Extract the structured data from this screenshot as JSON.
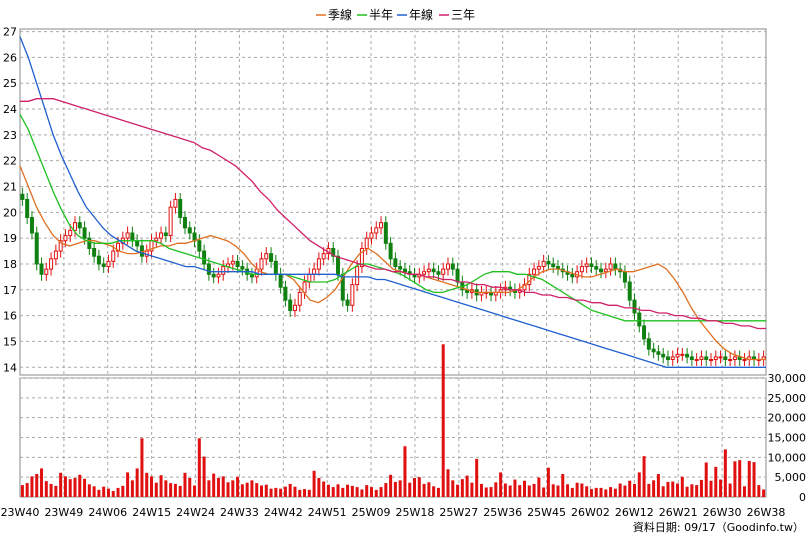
{
  "legend": [
    {
      "label": "季線",
      "color": "#e07020"
    },
    {
      "label": "半年",
      "color": "#20c020"
    },
    {
      "label": "年線",
      "color": "#2060d0"
    },
    {
      "label": "三年",
      "color": "#d0206a"
    }
  ],
  "source_label": "資料日期: 09/17（Goodinfo.tw）",
  "chart_data": {
    "type": "candlestick",
    "x_tick_labels": [
      "23W40",
      "23W49",
      "24W06",
      "24W15",
      "24W24",
      "24W33",
      "24W42",
      "24W51",
      "25W09",
      "25W18",
      "25W27",
      "25W36",
      "25W45",
      "26W02",
      "26W12",
      "26W21",
      "26W30",
      "26W38"
    ],
    "price_axis": {
      "range": [
        13.7,
        27.1
      ],
      "ticks": [
        14,
        15,
        16,
        17,
        18,
        19,
        20,
        21,
        22,
        23,
        24,
        25,
        26,
        27
      ],
      "grid": true
    },
    "volume_axis": {
      "range": [
        0,
        30000
      ],
      "ticks": [
        "0",
        "5,000",
        "10,000",
        "15,000",
        "20,000",
        "25,000",
        "30,000"
      ],
      "grid": true
    },
    "n_weeks": 156,
    "close": [
      20.5,
      19.8,
      19.2,
      18.0,
      17.6,
      17.8,
      18.2,
      18.5,
      18.9,
      19.1,
      19.3,
      19.6,
      19.4,
      19.0,
      18.6,
      18.3,
      18.0,
      17.9,
      18.1,
      18.5,
      18.8,
      19.0,
      19.2,
      18.9,
      18.7,
      18.3,
      18.5,
      18.9,
      19.0,
      19.2,
      19.1,
      20.2,
      20.5,
      19.8,
      19.4,
      19.2,
      18.9,
      18.5,
      18.0,
      17.6,
      17.5,
      17.6,
      17.9,
      18.0,
      18.1,
      17.9,
      17.8,
      17.6,
      17.5,
      17.8,
      18.2,
      18.4,
      18.1,
      17.6,
      17.1,
      16.6,
      16.2,
      16.4,
      16.9,
      17.3,
      17.6,
      17.8,
      18.2,
      18.4,
      18.6,
      18.3,
      17.6,
      16.6,
      16.4,
      17.2,
      17.9,
      18.6,
      19.0,
      19.2,
      19.4,
      19.6,
      18.8,
      18.2,
      17.9,
      17.8,
      17.7,
      17.6,
      17.5,
      17.6,
      17.7,
      17.8,
      17.7,
      17.6,
      17.8,
      18.0,
      17.8,
      17.3,
      17.0,
      16.9,
      17.0,
      16.8,
      16.9,
      16.9,
      16.8,
      16.9,
      17.0,
      17.1,
      17.0,
      16.9,
      17.0,
      17.2,
      17.6,
      17.8,
      17.9,
      18.1,
      18.0,
      17.9,
      17.8,
      17.7,
      17.6,
      17.5,
      17.7,
      17.9,
      18.0,
      17.9,
      17.8,
      17.7,
      17.8,
      18.0,
      17.8,
      17.7,
      17.3,
      16.6,
      16.1,
      15.6,
      15.1,
      14.7,
      14.6,
      14.5,
      14.4,
      14.3,
      14.4,
      14.5,
      14.5,
      14.4,
      14.3,
      14.3,
      14.4,
      14.3,
      14.3,
      14.4,
      14.4,
      14.3,
      14.3,
      14.4,
      14.3,
      14.3,
      14.4,
      14.3,
      14.3,
      14.4
    ],
    "volume": [
      3000,
      3500,
      5200,
      5800,
      7200,
      4000,
      3300,
      2800,
      6100,
      5200,
      4500,
      4800,
      5600,
      4600,
      3200,
      2700,
      1800,
      2600,
      2100,
      1500,
      2300,
      2800,
      6200,
      4200,
      7200,
      14800,
      6100,
      5200,
      3600,
      5500,
      4200,
      3500,
      3300,
      2800,
      6100,
      4800,
      2900,
      14800,
      10200,
      4200,
      5900,
      4800,
      5200,
      3700,
      4200,
      5100,
      3200,
      3600,
      4200,
      3500,
      2900,
      3100,
      2100,
      2300,
      2100,
      2600,
      3300,
      2600,
      1800,
      2000,
      1800,
      6600,
      4800,
      3900,
      3100,
      2500,
      3200,
      2300,
      3100,
      2800,
      2500,
      1900,
      3000,
      2500,
      1800,
      2500,
      3500,
      5600,
      3800,
      4200,
      12800,
      3600,
      4800,
      5000,
      3300,
      3700,
      2700,
      2300,
      38500,
      7000,
      4200,
      3100,
      4500,
      5400,
      3600,
      9600,
      3300,
      2400,
      2500,
      3700,
      6200,
      3400,
      2900,
      4400,
      3000,
      4100,
      2900,
      3300,
      4900,
      2400,
      7400,
      3200,
      2900,
      5800,
      3200,
      2300,
      3600,
      3400,
      2700,
      2000,
      2300,
      2300,
      1900,
      2500,
      2100,
      3400,
      2900,
      4100,
      3300,
      6200,
      10300,
      3300,
      4200,
      5800,
      2700,
      3800,
      3900,
      3400,
      5100,
      2600,
      3200,
      3000,
      4300,
      8700,
      4100,
      7600,
      4400,
      12000,
      3400,
      9000,
      9300,
      2700,
      9100,
      8800,
      3000,
      1900
    ],
    "ma_quarter": [
      21.8,
      21.0,
      20.2,
      19.6,
      19.1,
      18.8,
      18.7,
      18.8,
      18.9,
      18.9,
      18.8,
      18.7,
      18.5,
      18.4,
      18.4,
      18.5,
      18.6,
      18.7,
      18.7,
      18.8,
      18.8,
      18.9,
      19.0,
      19.1,
      19.0,
      18.9,
      18.7,
      18.4,
      18.0,
      17.7,
      17.6,
      17.6,
      17.6,
      17.4,
      17.0,
      16.6,
      16.5,
      16.7,
      17.0,
      17.5,
      18.0,
      18.4,
      18.6,
      18.4,
      18.1,
      17.8,
      17.7,
      17.6,
      17.6,
      17.5,
      17.4,
      17.3,
      17.2,
      17.1,
      17.0,
      16.9,
      16.9,
      16.9,
      16.9,
      16.9,
      17.0,
      17.2,
      17.5,
      17.7,
      17.8,
      17.8,
      17.7,
      17.6,
      17.5,
      17.5,
      17.6,
      17.7,
      17.8,
      17.7,
      17.7,
      17.8,
      17.9,
      18.0,
      17.8,
      17.4,
      16.9,
      16.3,
      15.8,
      15.4,
      15.0,
      14.7,
      14.5,
      14.4,
      14.3,
      14.3,
      14.3
    ],
    "ma_half": [
      23.8,
      23.2,
      22.4,
      21.6,
      20.8,
      20.1,
      19.5,
      19.1,
      18.9,
      18.8,
      18.8,
      18.8,
      18.9,
      18.9,
      18.9,
      18.9,
      18.9,
      18.8,
      18.6,
      18.5,
      18.4,
      18.3,
      18.2,
      18.1,
      18.0,
      17.9,
      17.8,
      17.7,
      17.6,
      17.6,
      17.6,
      17.6,
      17.6,
      17.5,
      17.4,
      17.3,
      17.3,
      17.3,
      17.4,
      17.6,
      17.8,
      18.0,
      18.0,
      17.9,
      17.8,
      17.7,
      17.6,
      17.4,
      17.2,
      17.0,
      16.9,
      16.9,
      17.0,
      17.1,
      17.2,
      17.4,
      17.6,
      17.7,
      17.7,
      17.7,
      17.6,
      17.6,
      17.5,
      17.4,
      17.2,
      17.0,
      16.8,
      16.6,
      16.4,
      16.2,
      16.1,
      16.0,
      15.9,
      15.8,
      15.8,
      15.8,
      15.8,
      15.8,
      15.8,
      15.8,
      15.8,
      15.8,
      15.8,
      15.8,
      15.8,
      15.8,
      15.8,
      15.8,
      15.8,
      15.8,
      15.8
    ],
    "ma_year": [
      26.8,
      26.0,
      25.0,
      24.0,
      23.0,
      22.2,
      21.5,
      20.8,
      20.2,
      19.8,
      19.4,
      19.1,
      18.9,
      18.7,
      18.5,
      18.4,
      18.3,
      18.2,
      18.1,
      18.0,
      17.9,
      17.9,
      17.8,
      17.7,
      17.7,
      17.7,
      17.7,
      17.7,
      17.7,
      17.6,
      17.6,
      17.6,
      17.6,
      17.6,
      17.6,
      17.6,
      17.6,
      17.6,
      17.6,
      17.5,
      17.5,
      17.5,
      17.5,
      17.4,
      17.4,
      17.3,
      17.2,
      17.1,
      17.0,
      16.9,
      16.8,
      16.7,
      16.6,
      16.5,
      16.4,
      16.3,
      16.2,
      16.1,
      16.0,
      15.9,
      15.8,
      15.7,
      15.6,
      15.5,
      15.4,
      15.3,
      15.2,
      15.1,
      15.0,
      14.9,
      14.8,
      14.7,
      14.6,
      14.5,
      14.4,
      14.3,
      14.2,
      14.1,
      14.0,
      14.0,
      14.0,
      14.0,
      14.0,
      14.0,
      14.0,
      14.0,
      14.0,
      14.0,
      14.0,
      14.0,
      14.0
    ],
    "ma_3yr": [
      24.3,
      24.3,
      24.4,
      24.4,
      24.4,
      24.3,
      24.2,
      24.1,
      24.0,
      23.9,
      23.8,
      23.7,
      23.6,
      23.5,
      23.4,
      23.3,
      23.2,
      23.1,
      23.0,
      22.9,
      22.8,
      22.7,
      22.5,
      22.4,
      22.2,
      22.0,
      21.8,
      21.5,
      21.2,
      20.8,
      20.5,
      20.1,
      19.8,
      19.5,
      19.2,
      18.9,
      18.7,
      18.5,
      18.3,
      18.2,
      18.1,
      18.0,
      17.9,
      17.8,
      17.8,
      17.7,
      17.7,
      17.6,
      17.6,
      17.5,
      17.5,
      17.4,
      17.4,
      17.3,
      17.3,
      17.2,
      17.2,
      17.1,
      17.1,
      17.0,
      17.0,
      16.9,
      16.9,
      16.8,
      16.8,
      16.7,
      16.7,
      16.6,
      16.6,
      16.5,
      16.5,
      16.4,
      16.4,
      16.3,
      16.3,
      16.2,
      16.2,
      16.1,
      16.1,
      16.0,
      16.0,
      15.9,
      15.9,
      15.8,
      15.8,
      15.7,
      15.7,
      15.6,
      15.6,
      15.5,
      15.5
    ]
  }
}
